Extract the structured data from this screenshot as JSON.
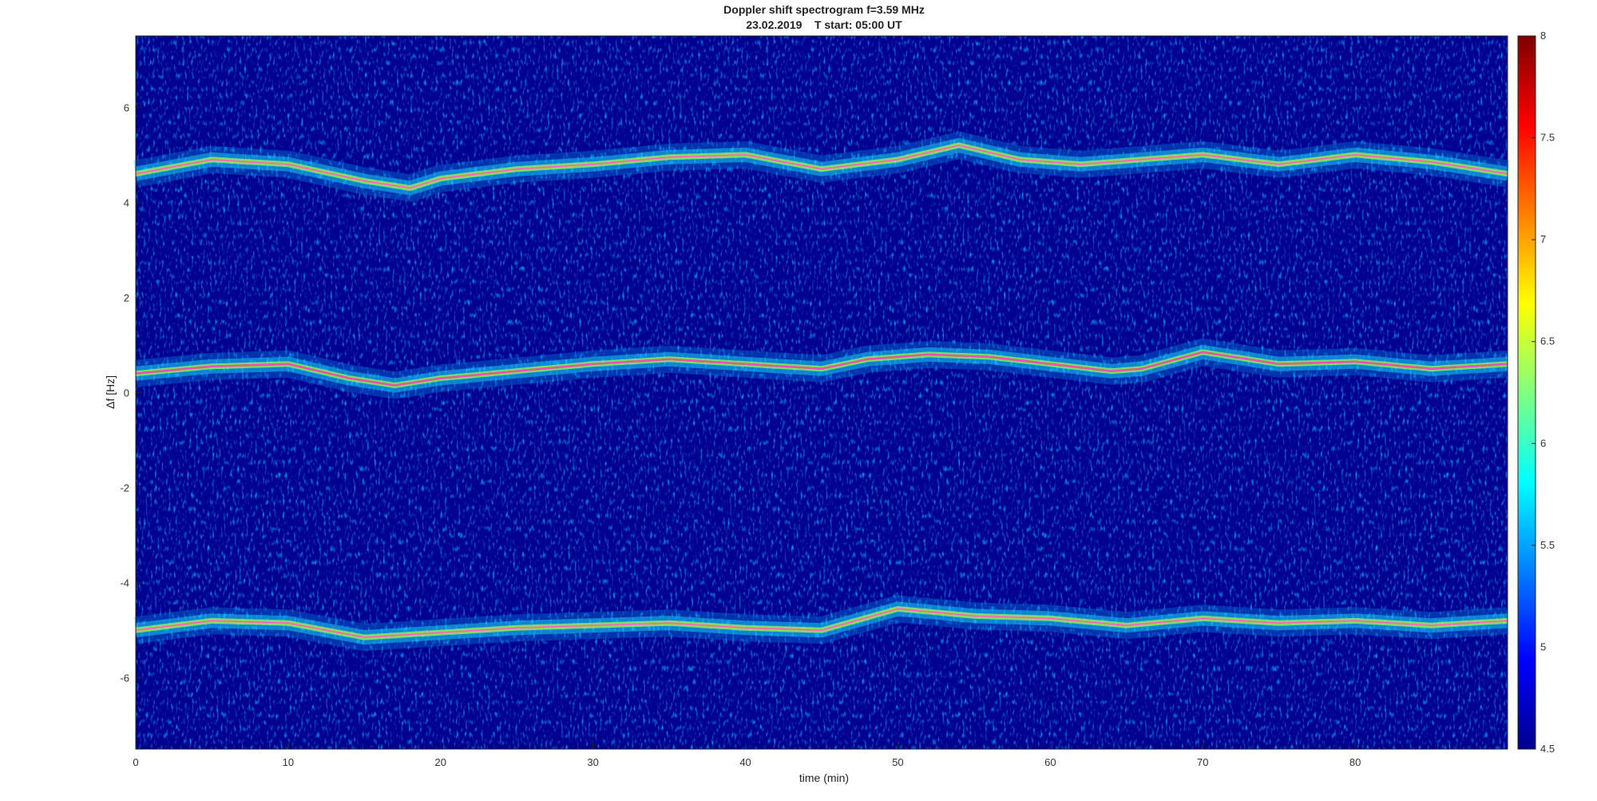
{
  "chart_data": {
    "type": "heatmap",
    "title": "Doppler shift spectrogram f=3.59 MHz",
    "subtitle": "23.02.2019    T start: 05:00 UT",
    "xlabel": "time (min)",
    "ylabel": "Δf [Hz]",
    "xlim": [
      0,
      90
    ],
    "ylim": [
      -7.5,
      7.5
    ],
    "x_ticks": [
      "0",
      "10",
      "20",
      "30",
      "40",
      "50",
      "60",
      "70",
      "80"
    ],
    "x_tick_values": [
      0,
      10,
      20,
      30,
      40,
      50,
      60,
      70,
      80
    ],
    "y_ticks": [
      "6",
      "4",
      "2",
      "0",
      "-2",
      "-4",
      "-6"
    ],
    "y_tick_values": [
      6,
      4,
      2,
      0,
      -2,
      -4,
      -6
    ],
    "colorbar": {
      "range": [
        4.5,
        8
      ],
      "ticks": [
        "8",
        "7.5",
        "7",
        "6.5",
        "6",
        "5.5",
        "5",
        "4.5"
      ],
      "tick_values": [
        8,
        7.5,
        7,
        6.5,
        6,
        5.5,
        5,
        4.5
      ],
      "colormap": "jet"
    },
    "grid": false,
    "series": [
      {
        "x": [
          0,
          5,
          10,
          15,
          18,
          20,
          25,
          30,
          35,
          40,
          45,
          50,
          54,
          58,
          62,
          66,
          70,
          75,
          80,
          85,
          90
        ],
        "y": [
          4.6,
          4.9,
          4.8,
          4.45,
          4.3,
          4.5,
          4.7,
          4.8,
          4.95,
          5.0,
          4.7,
          4.9,
          5.2,
          4.9,
          4.8,
          4.9,
          5.0,
          4.8,
          5.0,
          4.85,
          4.6
        ]
      },
      {
        "x": [
          0,
          5,
          10,
          14,
          17,
          20,
          25,
          30,
          35,
          40,
          45,
          48,
          52,
          56,
          60,
          64,
          66,
          70,
          75,
          80,
          85,
          90
        ],
        "y": [
          0.4,
          0.55,
          0.6,
          0.3,
          0.15,
          0.3,
          0.45,
          0.6,
          0.7,
          0.6,
          0.5,
          0.7,
          0.8,
          0.75,
          0.6,
          0.45,
          0.5,
          0.85,
          0.6,
          0.65,
          0.5,
          0.6
        ]
      },
      {
        "x": [
          0,
          5,
          10,
          15,
          20,
          25,
          30,
          35,
          40,
          45,
          50,
          55,
          60,
          65,
          70,
          75,
          80,
          85,
          90
        ],
        "y": [
          -5.0,
          -4.8,
          -4.85,
          -5.15,
          -5.05,
          -4.95,
          -4.9,
          -4.85,
          -4.95,
          -5.0,
          -4.55,
          -4.7,
          -4.75,
          -4.9,
          -4.75,
          -4.85,
          -4.8,
          -4.9,
          -4.8
        ]
      }
    ]
  }
}
